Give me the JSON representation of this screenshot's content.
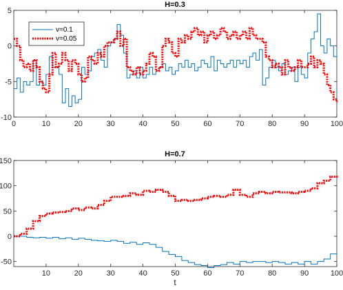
{
  "chart_data": [
    {
      "type": "line",
      "title": "H=0.3",
      "xlabel": "",
      "ylabel": "",
      "xlim": [
        0,
        100
      ],
      "ylim": [
        -10,
        5
      ],
      "xticks": [
        0,
        10,
        20,
        30,
        40,
        50,
        60,
        70,
        80,
        90,
        100
      ],
      "yticks": [
        -10,
        -5,
        0,
        5
      ],
      "grid": false,
      "legend": "top-left",
      "series": [
        {
          "name": "v=0.1",
          "color": "#0072BD",
          "style": "solid",
          "x": [
            0,
            1,
            2,
            3,
            4,
            5,
            6,
            7,
            8,
            9,
            10,
            11,
            12,
            13,
            14,
            15,
            16,
            17,
            18,
            19,
            20,
            21,
            22,
            23,
            24,
            25,
            26,
            27,
            28,
            29,
            30,
            31,
            32,
            33,
            34,
            35,
            36,
            37,
            38,
            39,
            40,
            41,
            42,
            43,
            44,
            45,
            46,
            47,
            48,
            49,
            50,
            51,
            52,
            53,
            54,
            55,
            56,
            57,
            58,
            59,
            60,
            61,
            62,
            63,
            64,
            65,
            66,
            67,
            68,
            69,
            70,
            71,
            72,
            73,
            74,
            75,
            76,
            77,
            78,
            79,
            80,
            81,
            82,
            83,
            84,
            85,
            86,
            87,
            88,
            89,
            90,
            91,
            92,
            93,
            94,
            95,
            96,
            97,
            98,
            99,
            100
          ],
          "values": [
            -6,
            -4.5,
            -6.5,
            -5,
            -5.5,
            -5,
            -2,
            -5.5,
            -5,
            -5.5,
            -4,
            -1.5,
            -3,
            -3,
            -4,
            -8,
            -6,
            -8.5,
            -7,
            -8,
            -7.5,
            -3,
            -4,
            -3.5,
            -1.5,
            -1,
            -0.5,
            -2,
            -3,
            0,
            0.5,
            1,
            3,
            1.5,
            -1,
            -4.5,
            -4,
            -3.5,
            -4.5,
            -3,
            -4.5,
            -4,
            -3,
            -4,
            -3.5,
            -3,
            -2.5,
            -3.5,
            -3,
            -4,
            -3.5,
            -2.5,
            -3,
            -2,
            -3,
            -2.5,
            -3.5,
            -3,
            -2,
            -2.5,
            -3,
            -1.5,
            -3.5,
            -2,
            -2.5,
            -3,
            -2.5,
            -2,
            -3,
            -2,
            -2.5,
            -2,
            -3,
            -1.5,
            -1,
            -2,
            -0.5,
            -5.5,
            -4.5,
            -3,
            -2,
            -3,
            -3.5,
            -2.5,
            -4,
            -3.5,
            -3,
            -5,
            -3,
            -4,
            -4.5,
            -1,
            1,
            2,
            4.5,
            0,
            -1,
            1,
            0,
            -1.5,
            -1
          ]
        },
        {
          "name": "v=0.05",
          "color": "#FF0000",
          "style": "dotted",
          "x": [
            0,
            1,
            2,
            3,
            4,
            5,
            6,
            7,
            8,
            9,
            10,
            11,
            12,
            13,
            14,
            15,
            16,
            17,
            18,
            19,
            20,
            21,
            22,
            23,
            24,
            25,
            26,
            27,
            28,
            29,
            30,
            31,
            32,
            33,
            34,
            35,
            36,
            37,
            38,
            39,
            40,
            41,
            42,
            43,
            44,
            45,
            46,
            47,
            48,
            49,
            50,
            51,
            52,
            53,
            54,
            55,
            56,
            57,
            58,
            59,
            60,
            61,
            62,
            63,
            64,
            65,
            66,
            67,
            68,
            69,
            70,
            71,
            72,
            73,
            74,
            75,
            76,
            77,
            78,
            79,
            80,
            81,
            82,
            83,
            84,
            85,
            86,
            87,
            88,
            89,
            90,
            91,
            92,
            93,
            94,
            95,
            96,
            97,
            98,
            99,
            100
          ],
          "values": [
            1,
            0,
            -2,
            -3,
            -2.5,
            -3.5,
            -2,
            -3,
            -5,
            -6,
            -6.5,
            -4,
            -1,
            -3,
            -2.5,
            -1,
            -2,
            -3.5,
            -2,
            -2.5,
            -4,
            -5,
            -4.5,
            -1.5,
            -2,
            -2.5,
            -1,
            -1.5,
            0,
            0.5,
            0.5,
            1,
            2,
            0,
            1,
            -3,
            -3.5,
            -4,
            -3,
            -4,
            -3.5,
            -2.5,
            -1,
            -1.5,
            -3.5,
            -3,
            0,
            1,
            0.5,
            -1,
            -1.5,
            1,
            0.5,
            1.5,
            1,
            2,
            2.5,
            1.5,
            2,
            0.5,
            1.5,
            2,
            1,
            1.5,
            2.5,
            2,
            1,
            1.5,
            2,
            1,
            1.5,
            2,
            1,
            2.5,
            1.5,
            1,
            1,
            0.5,
            -1.5,
            -2,
            -3,
            -2.5,
            -3,
            -4,
            -2,
            -3,
            -3.5,
            -3,
            -2,
            -3,
            -3,
            -2.5,
            -1.5,
            -3,
            -2,
            -2.5,
            -4,
            -5.5,
            -6.5,
            -7.5,
            -8
          ]
        }
      ]
    },
    {
      "type": "line",
      "title": "H=0.7",
      "xlabel": "t",
      "ylabel": "",
      "xlim": [
        0,
        100
      ],
      "ylim": [
        -60,
        150
      ],
      "xticks": [
        10,
        20,
        30,
        40,
        50,
        60,
        70,
        80,
        90,
        100
      ],
      "yticks": [
        -50,
        0,
        50,
        100,
        150
      ],
      "grid": false,
      "series": [
        {
          "name": "v=0.1",
          "color": "#0072BD",
          "style": "solid",
          "x": [
            0,
            2,
            4,
            6,
            8,
            10,
            12,
            14,
            16,
            18,
            20,
            22,
            24,
            26,
            28,
            30,
            32,
            34,
            36,
            38,
            40,
            42,
            44,
            46,
            48,
            50,
            52,
            54,
            56,
            58,
            60,
            62,
            64,
            66,
            68,
            70,
            72,
            74,
            76,
            78,
            80,
            82,
            84,
            86,
            88,
            90,
            92,
            94,
            96,
            98,
            100
          ],
          "values": [
            0,
            0,
            -2,
            -3,
            -2,
            -4,
            -2,
            -5,
            -3,
            -6,
            -4,
            -6,
            -8,
            -9,
            -10,
            -8,
            -10,
            -14,
            -12,
            -16,
            -13,
            -16,
            -22,
            -30,
            -36,
            -40,
            -48,
            -52,
            -56,
            -58,
            -62,
            -58,
            -56,
            -52,
            -55,
            -50,
            -52,
            -50,
            -50,
            -52,
            -50,
            -52,
            -55,
            -52,
            -55,
            -50,
            -55,
            -50,
            -45,
            -35,
            -38
          ]
        },
        {
          "name": "v=0.05",
          "color": "#FF0000",
          "style": "dotted",
          "x": [
            0,
            2,
            4,
            6,
            8,
            10,
            12,
            14,
            16,
            18,
            20,
            22,
            24,
            26,
            28,
            30,
            32,
            34,
            36,
            38,
            40,
            42,
            44,
            46,
            48,
            50,
            52,
            54,
            56,
            58,
            60,
            62,
            64,
            66,
            68,
            70,
            72,
            74,
            76,
            78,
            80,
            82,
            84,
            86,
            88,
            90,
            92,
            94,
            96,
            98,
            100
          ],
          "values": [
            0,
            5,
            15,
            30,
            40,
            45,
            47,
            48,
            50,
            55,
            52,
            57,
            55,
            62,
            70,
            78,
            78,
            80,
            85,
            82,
            90,
            88,
            92,
            88,
            80,
            70,
            72,
            70,
            72,
            75,
            78,
            80,
            78,
            82,
            92,
            82,
            78,
            85,
            88,
            85,
            88,
            87,
            87,
            85,
            88,
            90,
            95,
            105,
            110,
            118,
            115
          ]
        }
      ]
    }
  ]
}
